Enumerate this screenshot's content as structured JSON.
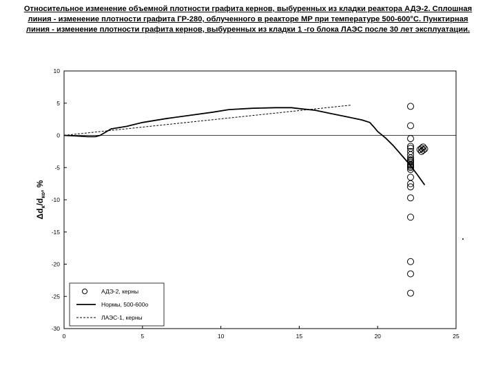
{
  "caption": {
    "lines": [
      "Относительное изменение объемной плотности графита кернов, выбуренных из кладки реактора АДЭ-2. Сплошная",
      "линия - изменение плотности графита ГР-280, облученного в реакторе МР при температуре 500-600°С. Пунктирная",
      "линия - изменение плотности графита кернов, выбуренных из кладки 1 -го блока ЛАЭС после 30 лет эксплуатации."
    ]
  },
  "chart_data": {
    "type": "line",
    "title": "",
    "xlabel": "",
    "ylabel": "Δd",
    "ylabel_sub1": "к",
    "ylabel_mid": "/d",
    "ylabel_sub2": "ко",
    "ylabel_suffix": ", %",
    "xlim": [
      0,
      25
    ],
    "ylim": [
      -30,
      10
    ],
    "xticks": [
      0,
      5,
      10,
      15,
      20,
      25
    ],
    "yticks": [
      10,
      5,
      0,
      -5,
      -10,
      -15,
      -20,
      -25,
      -30
    ],
    "xtick_labels": [
      "0",
      "5",
      "10",
      "15",
      "20",
      "25"
    ],
    "ytick_labels": [
      "10",
      "5",
      "0",
      "-5",
      "-10",
      "-15",
      "-20",
      "-25",
      "-30"
    ],
    "grid": false,
    "legend_position": "bottom-left",
    "series": [
      {
        "name": "АДЭ-2, керны",
        "kind": "scatter",
        "marker": "open-circle",
        "color": "#000000",
        "x": [
          22.1,
          22.1,
          22.1,
          22.1,
          22.1,
          22.1,
          22.1,
          22.1,
          22.1,
          22.1,
          22.1,
          22.1,
          22.1,
          22.1,
          22.1,
          22.1,
          22.1,
          22.1,
          22.1,
          22.1,
          22.1,
          22.1,
          22.1,
          22.1,
          22.7,
          22.8,
          22.9,
          23.0,
          22.8,
          22.9
        ],
        "y": [
          4.5,
          1.5,
          -0.5,
          -1.7,
          -2.5,
          -3.0,
          -3.5,
          -3.8,
          -4.0,
          -4.2,
          -4.5,
          -4.8,
          -5.0,
          -5.3,
          -6.5,
          -7.5,
          -8.0,
          -9.7,
          -12.7,
          -19.6,
          -21.5,
          -24.5,
          -2.0,
          -4.6,
          -2.2,
          -2.0,
          -1.8,
          -2.1,
          -2.5,
          -2.3
        ]
      },
      {
        "name": "Нормы, 500-600о",
        "kind": "line",
        "style": "solid",
        "color": "#000000",
        "x": [
          0,
          0.8,
          1.5,
          2.0,
          2.3,
          3.0,
          4.0,
          5.0,
          6.5,
          8.0,
          9.5,
          10.5,
          12.0,
          13.5,
          14.5,
          15.2,
          16.0,
          17.0,
          18.0,
          19.0,
          19.5,
          19.8,
          20.0,
          20.5,
          21.0,
          21.5,
          22.0,
          22.5,
          23.0
        ],
        "y": [
          0,
          -0.1,
          -0.2,
          -0.2,
          0.0,
          1.0,
          1.4,
          2.0,
          2.6,
          3.1,
          3.6,
          4.0,
          4.2,
          4.3,
          4.3,
          4.1,
          3.9,
          3.4,
          2.9,
          2.4,
          2.0,
          1.2,
          0.6,
          -0.4,
          -1.6,
          -3.0,
          -4.4,
          -6.0,
          -7.7
        ]
      },
      {
        "name": "ЛАЭС-1, керны",
        "kind": "line",
        "style": "dashed",
        "color": "#000000",
        "x": [
          0,
          18.3
        ],
        "y": [
          0,
          4.7
        ]
      }
    ]
  }
}
